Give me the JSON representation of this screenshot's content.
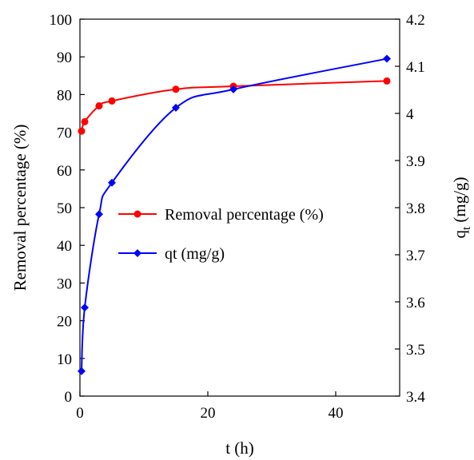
{
  "chart_data": {
    "type": "line",
    "xlabel": "t (h)",
    "ylabel_left": "Removal percentage (%)",
    "ylabel_right_main": "q",
    "ylabel_right_sub": "t",
    "ylabel_right_rest": " (mg/g)",
    "xlim": [
      0,
      50
    ],
    "ylim_left": [
      0,
      100
    ],
    "ylim_right": [
      3.4,
      4.2
    ],
    "x_ticks": [
      "0",
      "20",
      "40"
    ],
    "x_tick_values": [
      0,
      20,
      40
    ],
    "y_left_ticks": [
      "0",
      "10",
      "20",
      "30",
      "40",
      "50",
      "60",
      "70",
      "80",
      "90",
      "100"
    ],
    "y_left_tick_values": [
      0,
      10,
      20,
      30,
      40,
      50,
      60,
      70,
      80,
      90,
      100
    ],
    "y_right_ticks": [
      "3.4",
      "3.5",
      "3.6",
      "3.7",
      "3.8",
      "3.9",
      "4",
      "4.1",
      "4.2"
    ],
    "y_right_tick_values": [
      3.4,
      3.5,
      3.6,
      3.7,
      3.8,
      3.9,
      4.0,
      4.1,
      4.2
    ],
    "grid": false,
    "legend_position": "center",
    "series": [
      {
        "name": "Removal percentage (%)",
        "axis": "left",
        "marker": "circle",
        "color": "#ff0000",
        "x": [
          0.25,
          0.75,
          3,
          5,
          15,
          24,
          48
        ],
        "y": [
          70.3,
          72.8,
          77.0,
          78.3,
          81.4,
          82.2,
          83.6
        ]
      },
      {
        "name": "qt (mg/g)",
        "axis": "right",
        "marker": "diamond",
        "color": "#0000ff",
        "x": [
          0.25,
          0.75,
          3,
          5,
          15,
          24,
          48
        ],
        "y": [
          3.453,
          3.588,
          3.786,
          3.853,
          4.012,
          4.051,
          4.116
        ]
      }
    ]
  }
}
